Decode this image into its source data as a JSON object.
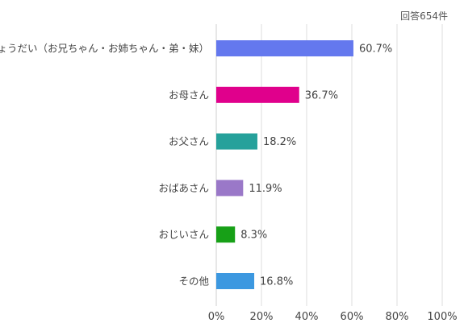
{
  "note": "回答654件",
  "chart_data": {
    "type": "bar",
    "orientation": "horizontal",
    "categories": [
      "きょうだい（お兄ちゃん・お姉ちゃん・弟・妹）",
      "お母さん",
      "お父さん",
      "おばあさん",
      "おじいさん",
      "その他"
    ],
    "values": [
      60.7,
      36.7,
      18.2,
      11.9,
      8.3,
      16.8
    ],
    "value_labels": [
      "60.7%",
      "36.7%",
      "18.2%",
      "11.9%",
      "8.3%",
      "16.8%"
    ],
    "colors": [
      "#6478ee",
      "#e0008c",
      "#26a19b",
      "#9a78c8",
      "#17a017",
      "#3c98e0"
    ],
    "xlim": [
      0,
      100
    ],
    "xticks": [
      "0%",
      "20%",
      "40%",
      "60%",
      "80%",
      "100%"
    ],
    "grid": true,
    "legend": "none"
  }
}
